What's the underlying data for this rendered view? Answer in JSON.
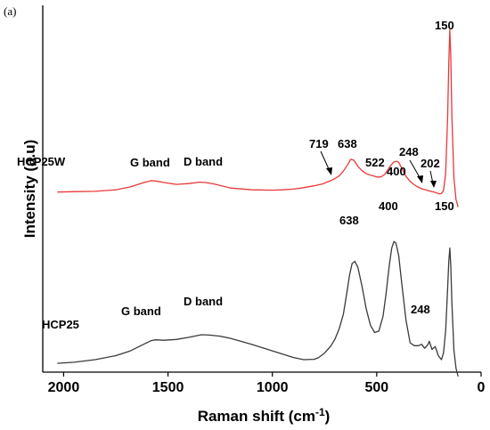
{
  "panel_label": "(a)",
  "chart_data": {
    "type": "line",
    "xlabel": "Raman shift (cm",
    "xlabel_sup": "-1",
    "xlabel_end": ")",
    "ylabel": "Intensity (a.u)",
    "xlim": [
      2100,
      0
    ],
    "x_reversed": true,
    "ylim": [
      0,
      1
    ],
    "y_ticks_shown": false,
    "grid": false,
    "x_ticks": [
      2000,
      1500,
      1000,
      500,
      0
    ],
    "series": [
      {
        "name": "HCP25W",
        "color": "#e8383a",
        "x": [
          2030,
          1950,
          1850,
          1750,
          1680,
          1620,
          1580,
          1560,
          1520,
          1460,
          1400,
          1350,
          1320,
          1280,
          1200,
          1100,
          1000,
          950,
          900,
          860,
          800,
          760,
          720,
          700,
          680,
          660,
          640,
          625,
          610,
          590,
          570,
          550,
          530,
          515,
          500,
          480,
          460,
          440,
          420,
          405,
          395,
          380,
          360,
          340,
          320,
          300,
          280,
          260,
          248,
          235,
          220,
          210,
          202,
          190,
          180,
          170,
          160,
          155,
          150,
          145,
          140,
          130,
          120,
          110
        ],
        "y": [
          0.491,
          0.492,
          0.493,
          0.497,
          0.505,
          0.516,
          0.522,
          0.521,
          0.517,
          0.512,
          0.514,
          0.518,
          0.517,
          0.513,
          0.502,
          0.497,
          0.496,
          0.497,
          0.499,
          0.502,
          0.508,
          0.513,
          0.522,
          0.528,
          0.535,
          0.548,
          0.565,
          0.58,
          0.578,
          0.561,
          0.549,
          0.541,
          0.537,
          0.535,
          0.532,
          0.532,
          0.54,
          0.558,
          0.572,
          0.575,
          0.572,
          0.556,
          0.534,
          0.52,
          0.511,
          0.504,
          0.499,
          0.496,
          0.494,
          0.492,
          0.49,
          0.488,
          0.486,
          0.487,
          0.495,
          0.54,
          0.7,
          0.84,
          0.933,
          0.86,
          0.7,
          0.53,
          0.47,
          0.45
        ]
      },
      {
        "name": "HCP25",
        "color": "#3a3a3a",
        "x": [
          2030,
          1950,
          1850,
          1750,
          1680,
          1620,
          1580,
          1560,
          1520,
          1460,
          1400,
          1340,
          1300,
          1250,
          1200,
          1100,
          1000,
          900,
          850,
          800,
          780,
          750,
          720,
          700,
          680,
          660,
          645,
          630,
          618,
          605,
          590,
          570,
          550,
          530,
          510,
          490,
          470,
          455,
          440,
          428,
          418,
          408,
          395,
          380,
          360,
          340,
          320,
          300,
          285,
          270,
          255,
          248,
          235,
          220,
          205,
          190,
          180,
          170,
          160,
          155,
          150,
          145,
          140,
          130,
          120,
          110
        ],
        "y": [
          0.024,
          0.027,
          0.034,
          0.045,
          0.058,
          0.075,
          0.086,
          0.088,
          0.087,
          0.089,
          0.095,
          0.102,
          0.101,
          0.098,
          0.092,
          0.076,
          0.058,
          0.04,
          0.034,
          0.035,
          0.039,
          0.052,
          0.071,
          0.09,
          0.118,
          0.158,
          0.21,
          0.265,
          0.296,
          0.302,
          0.285,
          0.232,
          0.172,
          0.128,
          0.108,
          0.112,
          0.152,
          0.215,
          0.29,
          0.338,
          0.356,
          0.352,
          0.318,
          0.241,
          0.142,
          0.08,
          0.072,
          0.072,
          0.076,
          0.065,
          0.075,
          0.084,
          0.062,
          0.07,
          0.045,
          0.034,
          0.052,
          0.112,
          0.231,
          0.3,
          0.338,
          0.29,
          0.19,
          0.06,
          0.01,
          -0.012
        ]
      }
    ],
    "annotations": [
      {
        "text": "150",
        "series": 0
      },
      {
        "text": "719",
        "series": 0,
        "arrow": true
      },
      {
        "text": "638",
        "series": 0
      },
      {
        "text": "522",
        "series": 0
      },
      {
        "text": "400",
        "series": 0
      },
      {
        "text": "248",
        "series": 0,
        "arrow": true
      },
      {
        "text": "202",
        "series": 0,
        "arrow": true
      },
      {
        "text": "G band",
        "series": 0
      },
      {
        "text": "D band",
        "series": 0
      },
      {
        "text": "638",
        "series": 1
      },
      {
        "text": "400",
        "series": 1
      },
      {
        "text": "150",
        "series": 1
      },
      {
        "text": "248",
        "series": 1
      },
      {
        "text": "G band",
        "series": 1
      },
      {
        "text": "D band",
        "series": 1
      }
    ]
  }
}
